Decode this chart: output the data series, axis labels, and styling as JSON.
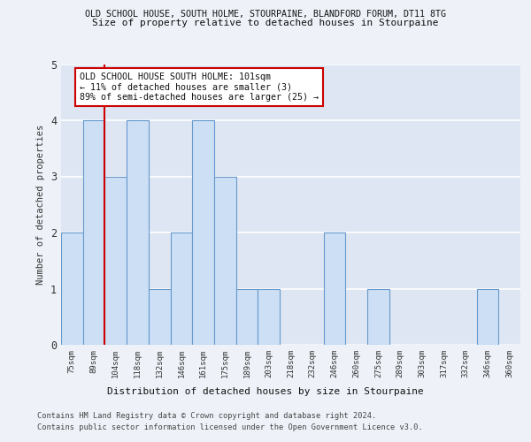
{
  "title1": "OLD SCHOOL HOUSE, SOUTH HOLME, STOURPAINE, BLANDFORD FORUM, DT11 8TG",
  "title2": "Size of property relative to detached houses in Stourpaine",
  "xlabel": "Distribution of detached houses by size in Stourpaine",
  "ylabel": "Number of detached properties",
  "categories": [
    "75sqm",
    "89sqm",
    "104sqm",
    "118sqm",
    "132sqm",
    "146sqm",
    "161sqm",
    "175sqm",
    "189sqm",
    "203sqm",
    "218sqm",
    "232sqm",
    "246sqm",
    "260sqm",
    "275sqm",
    "289sqm",
    "303sqm",
    "317sqm",
    "332sqm",
    "346sqm",
    "360sqm"
  ],
  "values": [
    2,
    4,
    3,
    4,
    1,
    2,
    4,
    3,
    1,
    1,
    0,
    0,
    2,
    0,
    1,
    0,
    0,
    0,
    0,
    1,
    0
  ],
  "bar_color": "#ccdff5",
  "bar_edge_color": "#6699cc",
  "vline_x": 1.5,
  "vline_color": "#cc0000",
  "annotation_text": "OLD SCHOOL HOUSE SOUTH HOLME: 101sqm\n← 11% of detached houses are smaller (3)\n89% of semi-detached houses are larger (25) →",
  "annotation_box_color": "#ffffff",
  "annotation_box_edge": "#cc0000",
  "ylim": [
    0,
    5
  ],
  "yticks": [
    0,
    1,
    2,
    3,
    4,
    5
  ],
  "footnote1": "Contains HM Land Registry data © Crown copyright and database right 2024.",
  "footnote2": "Contains public sector information licensed under the Open Government Licence v3.0.",
  "bg_color": "#eef2f8",
  "plot_bg_color": "#dde6f2",
  "grid_color": "#ffffff"
}
